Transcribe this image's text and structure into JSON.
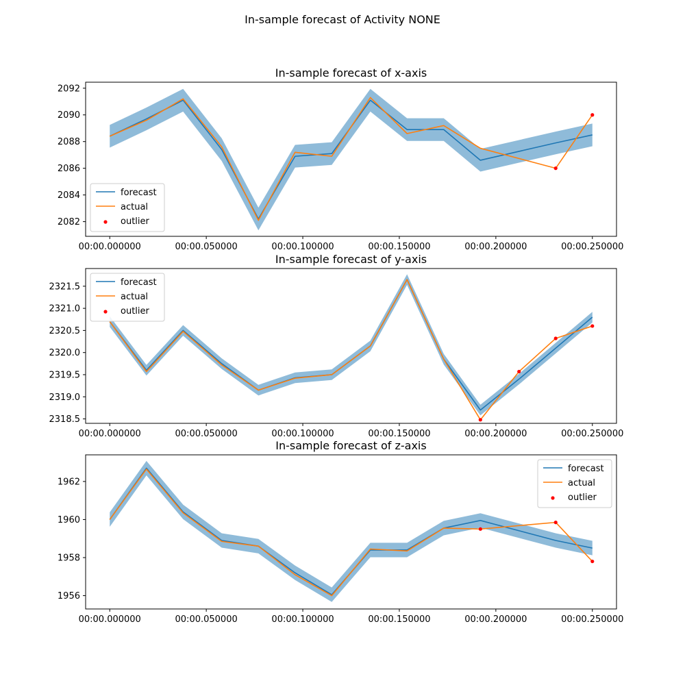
{
  "figure": {
    "suptitle": "In-sample forecast of Activity NONE"
  },
  "colors": {
    "forecast": "#1f77b4",
    "actual": "#ff7f0e",
    "outlier": "#ff0000",
    "band": "#1f77b4"
  },
  "chart_data": [
    {
      "type": "line",
      "title": "In-sample forecast of x-axis",
      "xlabel": "",
      "ylabel": "",
      "x": [
        0.0,
        0.019,
        0.038,
        0.058,
        0.077,
        0.096,
        0.115,
        0.135,
        0.154,
        0.173,
        0.192,
        0.231,
        0.25
      ],
      "x_ticks": [
        0.0,
        0.05,
        0.1,
        0.15,
        0.2,
        0.25
      ],
      "x_tick_labels": [
        "00:00.000000",
        "00:00.050000",
        "00:00.100000",
        "00:00.150000",
        "00:00.200000",
        "00:00.250000"
      ],
      "xlim": [
        -0.0125,
        0.2625
      ],
      "y_ticks": [
        2082,
        2084,
        2086,
        2088,
        2090,
        2092
      ],
      "y_tick_labels": [
        "2082",
        "2084",
        "2086",
        "2088",
        "2090",
        "2092"
      ],
      "ylim": [
        2080.9,
        2092.45
      ],
      "band_halfwidth": 0.85,
      "series": [
        {
          "name": "forecast",
          "values": [
            2088.4,
            2089.7,
            2091.1,
            2087.4,
            2082.2,
            2086.9,
            2087.1,
            2091.1,
            2088.9,
            2088.9,
            2086.6,
            2087.9,
            2088.5
          ]
        },
        {
          "name": "actual",
          "values": [
            2088.4,
            2089.6,
            2091.2,
            2087.6,
            2082.1,
            2087.2,
            2086.9,
            2091.3,
            2088.6,
            2089.2,
            2087.5,
            2086.0,
            2090.0
          ]
        }
      ],
      "outliers": [
        {
          "x": 0.231,
          "y": 2086.0
        },
        {
          "x": 0.25,
          "y": 2090.0
        }
      ],
      "legend": {
        "position": "lower-left",
        "entries": [
          "forecast",
          "actual",
          "outlier"
        ]
      }
    },
    {
      "type": "line",
      "title": "In-sample forecast of y-axis",
      "xlabel": "",
      "ylabel": "",
      "x": [
        0.0,
        0.019,
        0.038,
        0.058,
        0.077,
        0.096,
        0.115,
        0.135,
        0.154,
        0.173,
        0.192,
        0.212,
        0.231,
        0.25
      ],
      "x_ticks": [
        0.0,
        0.05,
        0.1,
        0.15,
        0.2,
        0.25
      ],
      "x_tick_labels": [
        "00:00.000000",
        "00:00.050000",
        "00:00.100000",
        "00:00.150000",
        "00:00.200000",
        "00:00.250000"
      ],
      "xlim": [
        -0.0125,
        0.2625
      ],
      "y_ticks": [
        2318.5,
        2319.0,
        2319.5,
        2320.0,
        2320.5,
        2321.0,
        2321.5
      ],
      "y_tick_labels": [
        "2318.5",
        "2319.0",
        "2319.5",
        "2320.0",
        "2320.5",
        "2321.0",
        "2321.5"
      ],
      "ylim": [
        2318.4,
        2321.9
      ],
      "band_halfwidth": 0.12,
      "series": [
        {
          "name": "forecast",
          "values": [
            2320.7,
            2319.6,
            2320.5,
            2319.75,
            2319.15,
            2319.43,
            2319.5,
            2320.15,
            2321.65,
            2319.85,
            2318.7,
            2319.4,
            2320.1,
            2320.8
          ]
        },
        {
          "name": "actual",
          "values": [
            2320.7,
            2319.57,
            2320.48,
            2319.72,
            2319.15,
            2319.42,
            2319.5,
            2320.15,
            2321.65,
            2319.85,
            2318.48,
            2319.57,
            2320.32,
            2320.6
          ]
        }
      ],
      "outliers": [
        {
          "x": 0.192,
          "y": 2318.48
        },
        {
          "x": 0.212,
          "y": 2319.57
        },
        {
          "x": 0.231,
          "y": 2320.32
        },
        {
          "x": 0.25,
          "y": 2320.6
        }
      ],
      "legend": {
        "position": "upper-left",
        "entries": [
          "forecast",
          "actual",
          "outlier"
        ]
      }
    },
    {
      "type": "line",
      "title": "In-sample forecast of z-axis",
      "xlabel": "",
      "ylabel": "",
      "x": [
        0.0,
        0.019,
        0.038,
        0.058,
        0.077,
        0.096,
        0.115,
        0.135,
        0.154,
        0.173,
        0.192,
        0.231,
        0.25
      ],
      "x_ticks": [
        0.0,
        0.05,
        0.1,
        0.15,
        0.2,
        0.25
      ],
      "x_tick_labels": [
        "00:00.000000",
        "00:00.050000",
        "00:00.100000",
        "00:00.150000",
        "00:00.200000",
        "00:00.250000"
      ],
      "xlim": [
        -0.0125,
        0.2625
      ],
      "y_ticks": [
        1956,
        1958,
        1960,
        1962
      ],
      "y_tick_labels": [
        "1956",
        "1958",
        "1960",
        "1962"
      ],
      "ylim": [
        1955.3,
        1963.4
      ],
      "band_halfwidth": 0.38,
      "series": [
        {
          "name": "forecast",
          "values": [
            1960.0,
            1962.7,
            1960.4,
            1958.9,
            1958.6,
            1957.2,
            1956.05,
            1958.4,
            1958.4,
            1959.55,
            1959.95,
            1958.9,
            1958.5
          ]
        },
        {
          "name": "actual",
          "values": [
            1960.0,
            1962.65,
            1960.35,
            1958.85,
            1958.6,
            1957.1,
            1956.0,
            1958.45,
            1958.35,
            1959.55,
            1959.5,
            1959.85,
            1957.8
          ]
        }
      ],
      "outliers": [
        {
          "x": 0.192,
          "y": 1959.5
        },
        {
          "x": 0.231,
          "y": 1959.85
        },
        {
          "x": 0.25,
          "y": 1957.8
        }
      ],
      "legend": {
        "position": "upper-right",
        "entries": [
          "forecast",
          "actual",
          "outlier"
        ]
      }
    }
  ]
}
